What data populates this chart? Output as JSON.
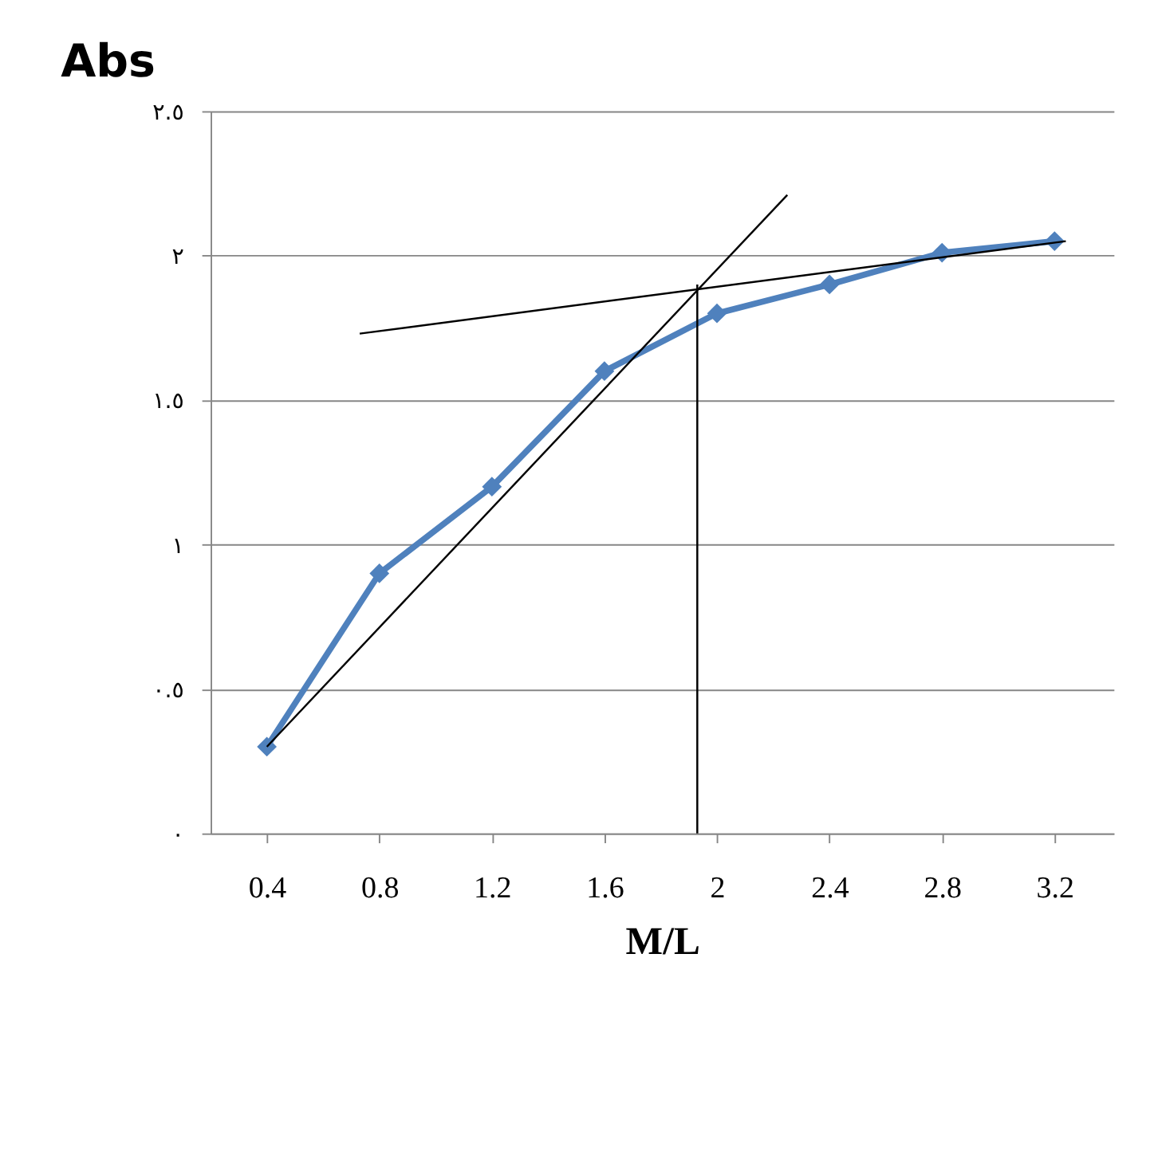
{
  "chart_data": {
    "type": "line",
    "title": "Abs",
    "xlabel": "M/L",
    "x": [
      0.4,
      0.8,
      1.2,
      1.6,
      2.0,
      2.4,
      2.8,
      3.2
    ],
    "series": [
      {
        "color": "#4f81bd",
        "values": [
          0.3,
          0.9,
          1.2,
          1.6,
          1.8,
          1.9,
          2.01,
          2.05
        ],
        "marker": "diamond"
      },
      {
        "color": "#000000",
        "x": [
          0.4,
          2.25
        ],
        "values": [
          0.3,
          2.21
        ],
        "marker": "none"
      },
      {
        "color": "#000000",
        "x": [
          0.73,
          3.24
        ],
        "values": [
          1.73,
          2.05
        ],
        "marker": "none"
      },
      {
        "color": "#000000",
        "x": [
          1.93,
          1.93
        ],
        "values": [
          1.9,
          0.0
        ],
        "marker": "none"
      }
    ],
    "xlim": [
      0.2,
      3.41
    ],
    "xticks": [
      0.4,
      0.8,
      1.2,
      1.6,
      2,
      2.4,
      2.8,
      3.2
    ],
    "ylim": [
      0,
      2.5
    ],
    "yticks": [
      {
        "value": 0,
        "label": "٠"
      },
      {
        "value": 0.5,
        "label": "٠.٥"
      },
      {
        "value": 1,
        "label": "١"
      },
      {
        "value": 1.5,
        "label": "١.٥"
      },
      {
        "value": 2,
        "label": "٢"
      },
      {
        "value": 2.5,
        "label": "٢.٥"
      }
    ],
    "grid": "y"
  }
}
